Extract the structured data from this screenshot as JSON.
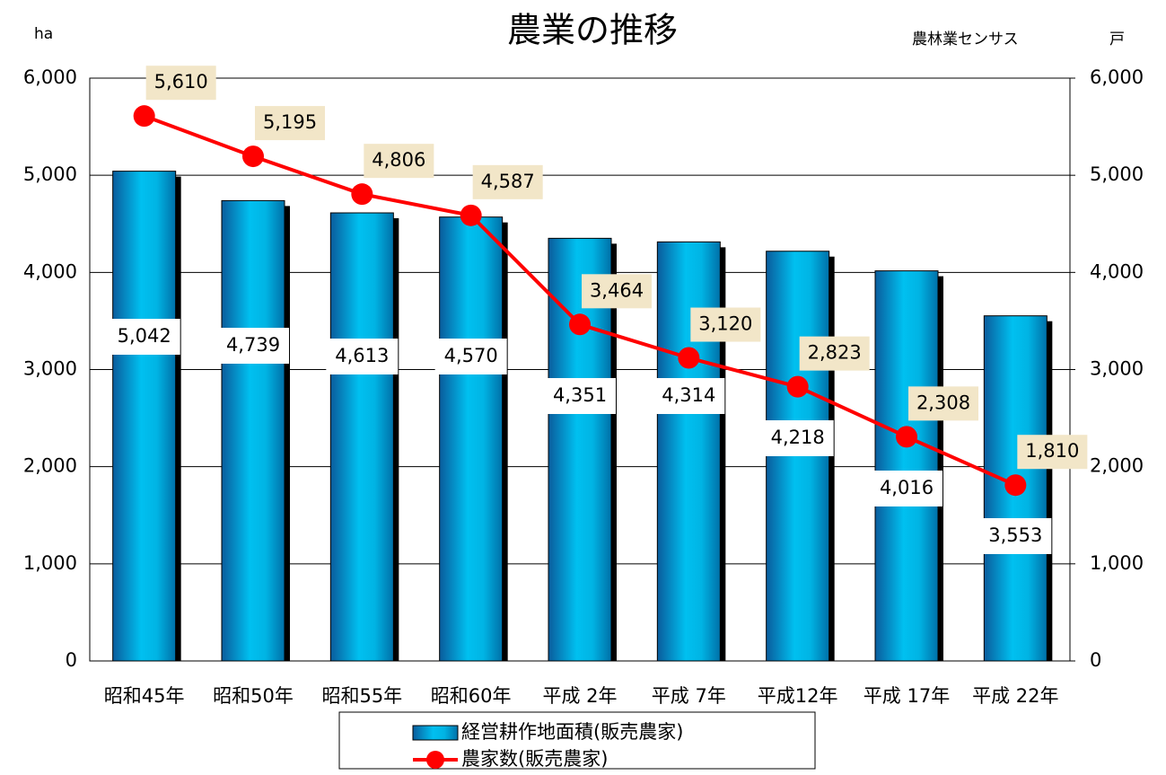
{
  "chart_data": {
    "type": "bar_line",
    "title": "農業の推移",
    "y_label": "ha",
    "source": "農林業センサス",
    "y2_label": "戸",
    "categories": [
      "昭和45年",
      "昭和50年",
      "昭和55年",
      "昭和60年",
      "平成 2年",
      "平成 7年",
      "平成12年",
      "平成 17年",
      "平成 22年"
    ],
    "series": [
      {
        "name": "経営耕作地面積(販売農家)",
        "type": "bar",
        "color": "#00b4e4",
        "values": [
          5042,
          4739,
          4613,
          4570,
          4351,
          4314,
          4218,
          4016,
          3553
        ],
        "value_labels": [
          "5,042",
          "4,739",
          "4,613",
          "4,570",
          "4,351",
          "4,314",
          "4,218",
          "4,016",
          "3,553"
        ]
      },
      {
        "name": "農家数(販売農家)",
        "type": "line",
        "axis": "y2",
        "color": "#ff0000",
        "values": [
          5610,
          5195,
          4806,
          4587,
          3464,
          3120,
          2823,
          2308,
          1810
        ],
        "value_labels": [
          "5,610",
          "5,195",
          "4,806",
          "4,587",
          "3,464",
          "3,120",
          "2,823",
          "2,308",
          "1,810"
        ]
      }
    ],
    "ylim": [
      0,
      6000
    ],
    "yticks": [
      0,
      {
        "value": 1000,
        "label": "1,000"
      },
      {
        "value": 2000,
        "label": "2,000"
      },
      {
        "value": 3000,
        "label": "3,000"
      },
      {
        "value": 4000,
        "label": "4,000"
      },
      {
        "value": 5000,
        "label": "5,000"
      },
      {
        "value": 6000,
        "label": "6,000"
      }
    ],
    "y2lim": [
      0,
      6000
    ],
    "y2ticks": [
      0,
      {
        "value": 1000,
        "label": "1,000"
      },
      {
        "value": 2000,
        "label": "2,000"
      },
      {
        "value": 3000,
        "label": "3,000"
      },
      {
        "value": 4000,
        "label": "4,000"
      },
      {
        "value": 5000,
        "label": "5,000"
      },
      {
        "value": 6000,
        "label": "6,000"
      }
    ],
    "grid": true
  }
}
